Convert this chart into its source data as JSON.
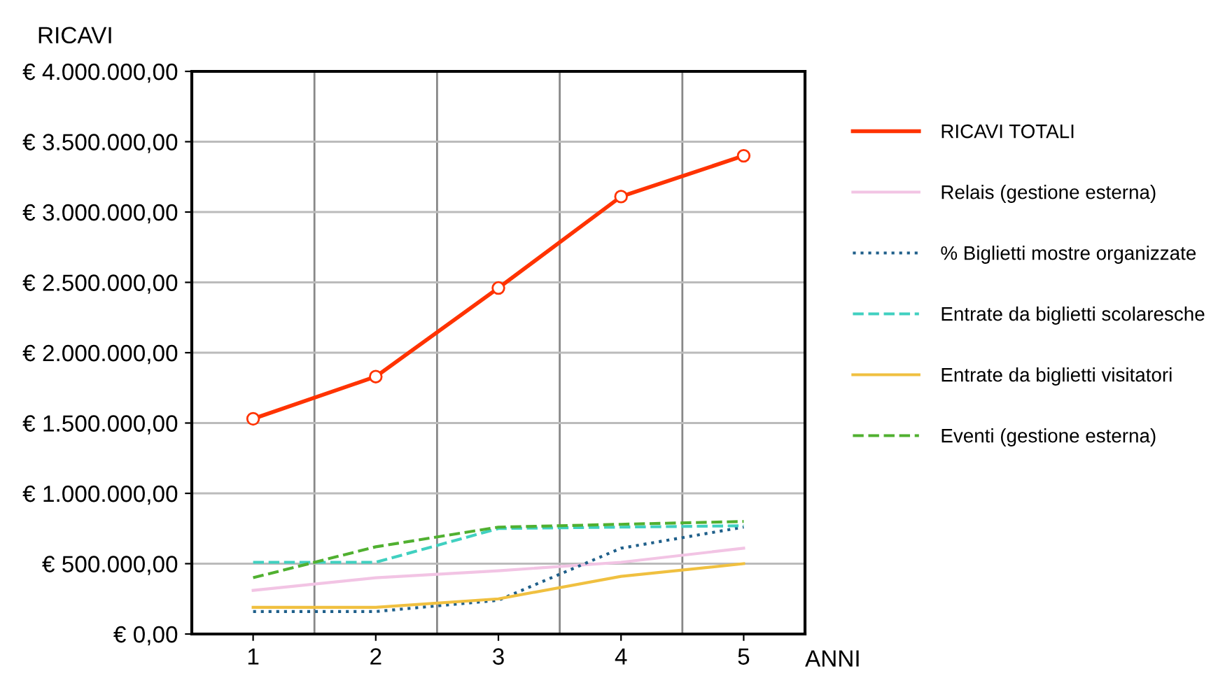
{
  "chart_data": {
    "type": "line",
    "xlabel": "ANNI",
    "ylabel": "RICAVI",
    "categories": [
      "1",
      "2",
      "3",
      "4",
      "5"
    ],
    "ylim": [
      0,
      4000000
    ],
    "yticks": [
      {
        "value": 0,
        "label": "€ 0,00"
      },
      {
        "value": 500000,
        "label": "€ 500.000,00"
      },
      {
        "value": 1000000,
        "label": "€ 1.000.000,00"
      },
      {
        "value": 1500000,
        "label": "€ 1.500.000,00"
      },
      {
        "value": 2000000,
        "label": "€ 2.000.000,00"
      },
      {
        "value": 2500000,
        "label": "€ 2.500.000,00"
      },
      {
        "value": 3000000,
        "label": "€ 3.000.000,00"
      },
      {
        "value": 3500000,
        "label": "€ 3.500.000,00"
      },
      {
        "value": 4000000,
        "label": "€ 4.000.000,00"
      }
    ],
    "grid": true,
    "legend": "right",
    "series": [
      {
        "name": "RICAVI TOTALI",
        "color": "#ff3300",
        "marker": "circle",
        "line_style": "solid",
        "values": [
          1530000,
          1830000,
          2460000,
          3110000,
          3400000
        ]
      },
      {
        "name": "Relais (gestione esterna)",
        "color": "#f2c4e4",
        "marker": "none",
        "line_style": "solid",
        "values": [
          310000,
          400000,
          450000,
          510000,
          610000
        ]
      },
      {
        "name": "% Biglietti mostre organizzate",
        "color": "#1f5f8a",
        "marker": "none",
        "line_style": "dotted",
        "values": [
          160000,
          160000,
          240000,
          610000,
          760000
        ]
      },
      {
        "name": "Entrate da biglietti scolaresche",
        "color": "#40d0c0",
        "marker": "none",
        "line_style": "dashed",
        "values": [
          510000,
          510000,
          750000,
          760000,
          770000
        ]
      },
      {
        "name": "Entrate da biglietti visitatori",
        "color": "#f0c040",
        "marker": "none",
        "line_style": "solid",
        "values": [
          190000,
          190000,
          250000,
          410000,
          500000
        ]
      },
      {
        "name": "Eventi (gestione esterna)",
        "color": "#50b030",
        "marker": "none",
        "line_style": "dashed",
        "values": [
          400000,
          620000,
          760000,
          780000,
          800000
        ]
      }
    ]
  }
}
